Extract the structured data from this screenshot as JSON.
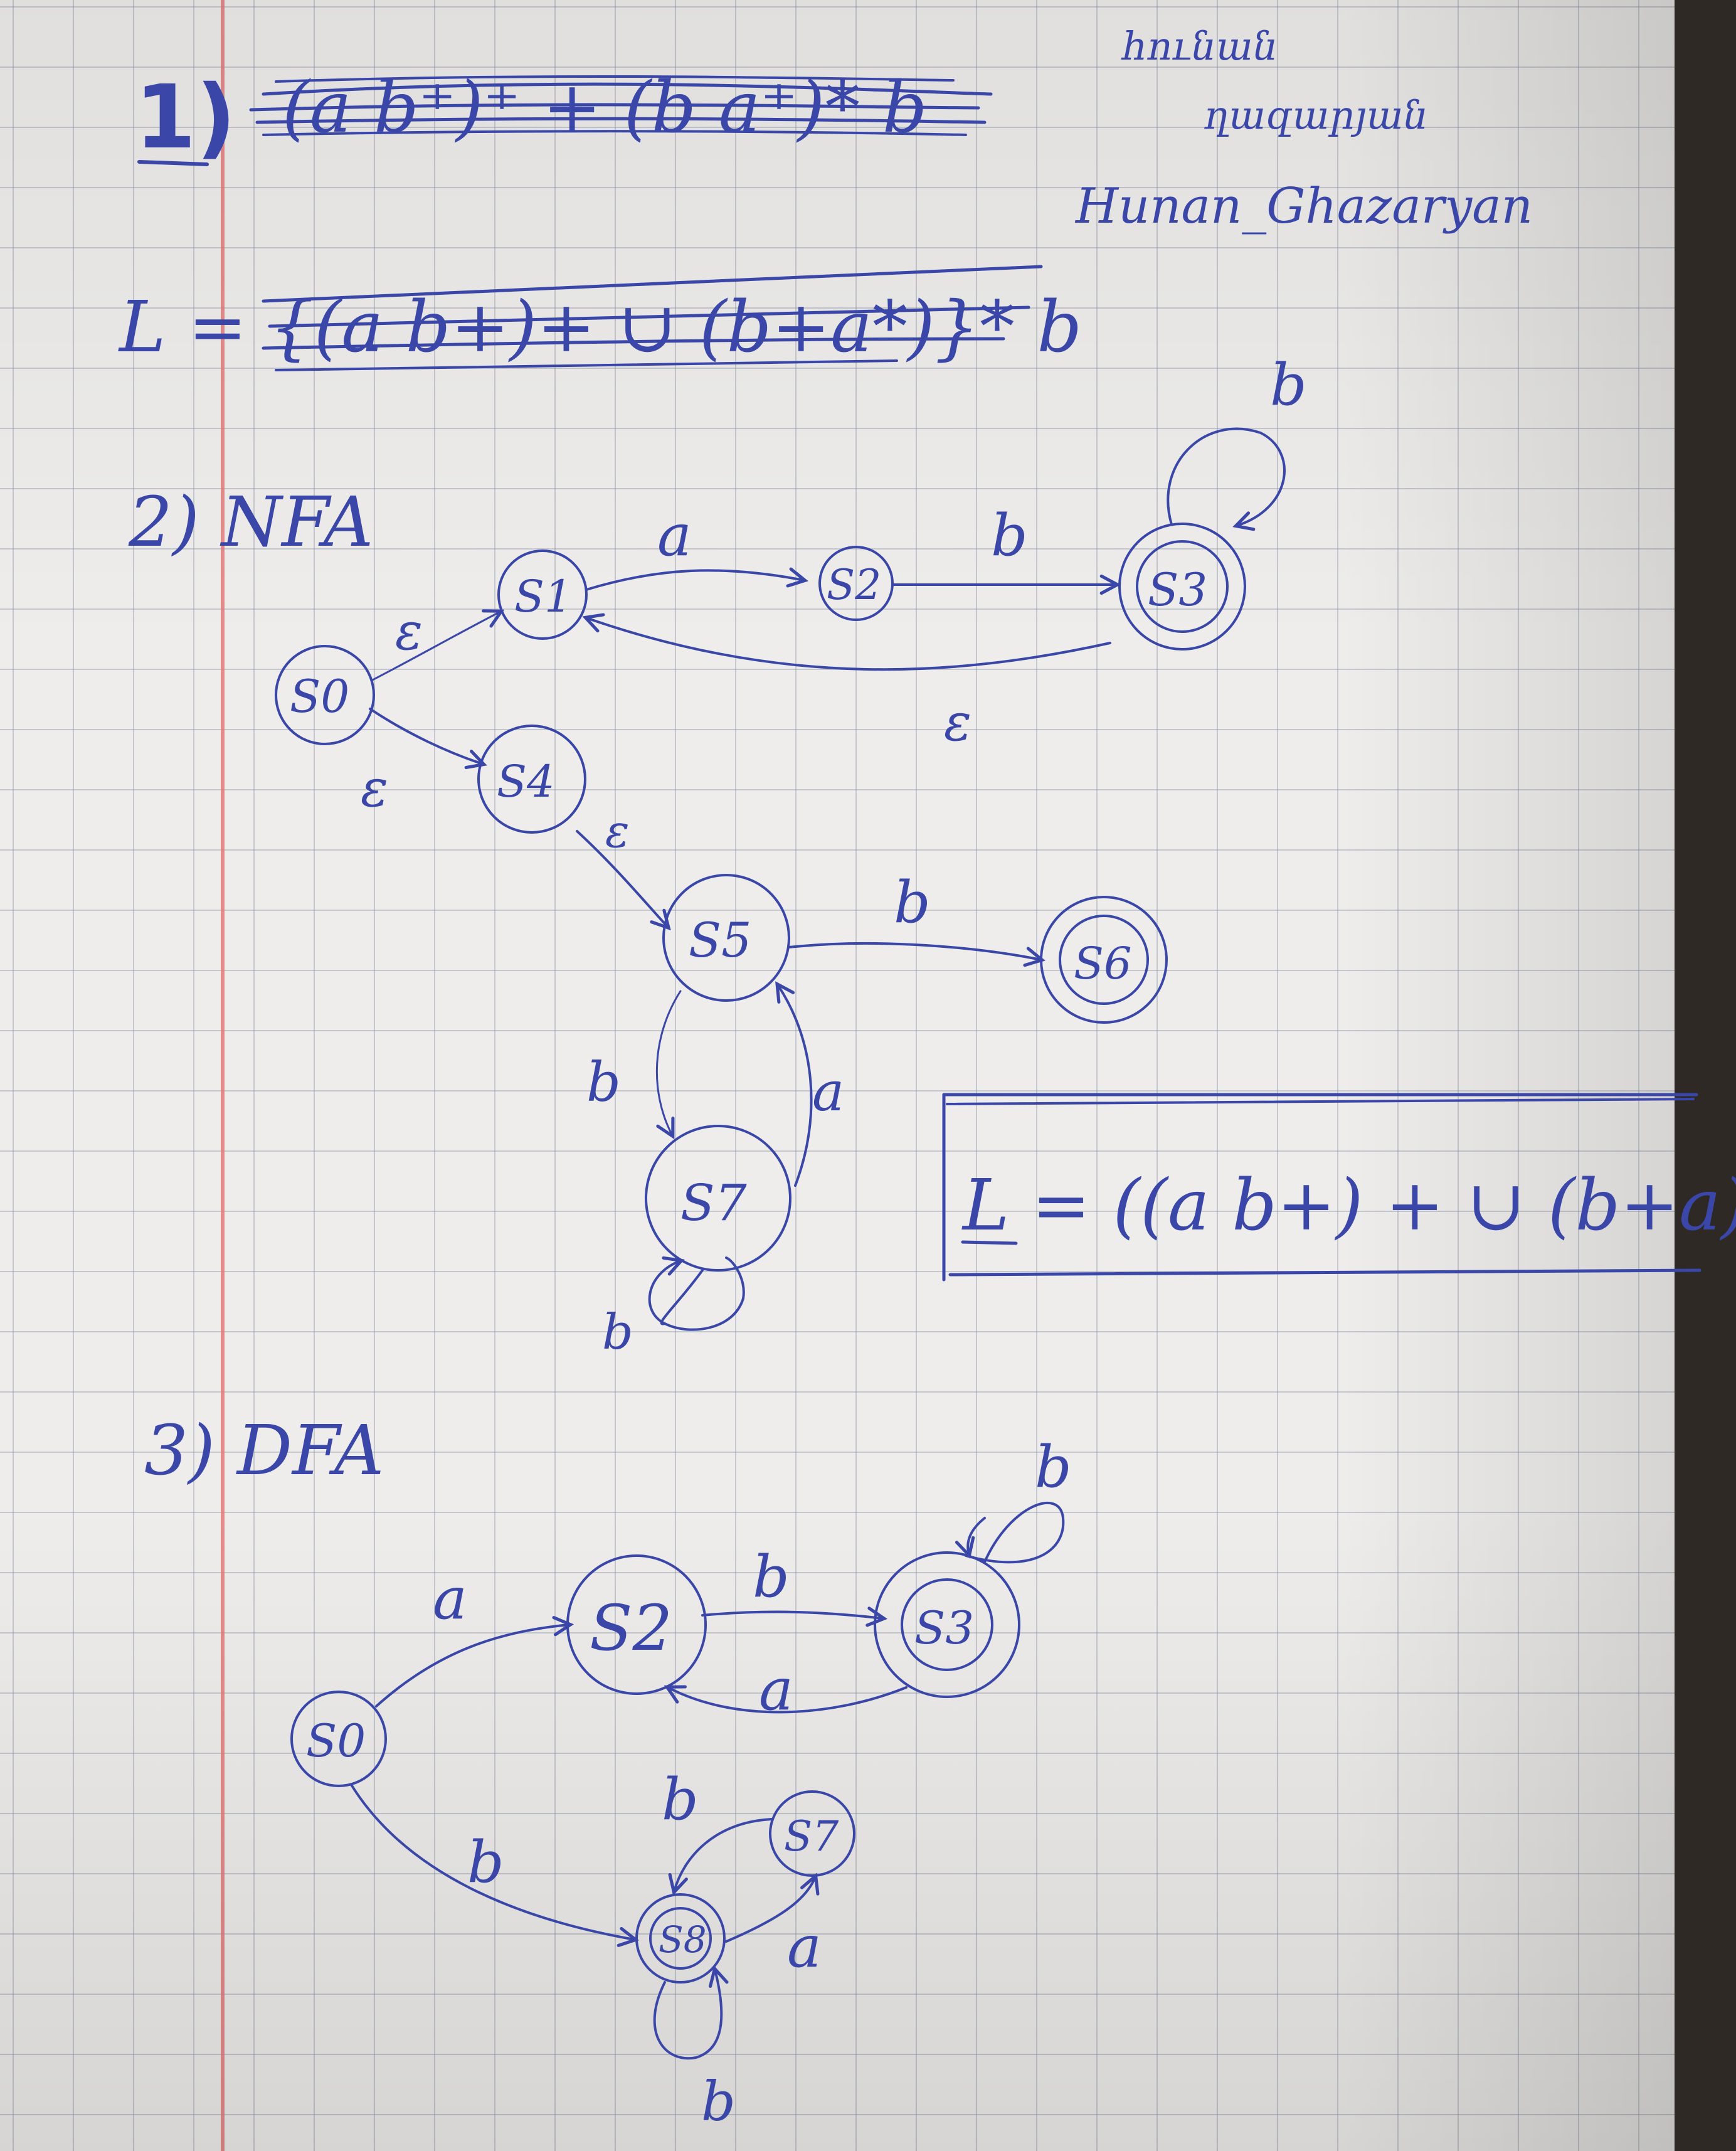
{
  "header": {
    "section1_number": "1)",
    "author_armenian_line1": "հունան",
    "author_armenian_line2": "ղազարյան",
    "author_latin": "Hunan_Ghazaryan"
  },
  "section1": {
    "crossed_expression": "(a b⁺)⁺ + (b a⁺)* b",
    "crossed_language": "L = {(a b+)+ ∪ (b+a*)}* b"
  },
  "section2": {
    "heading": "2) NFA",
    "states": [
      "S1",
      "S2",
      "S3",
      "S0",
      "S4",
      "S5",
      "S6",
      "S7"
    ],
    "transition_labels": {
      "s1_s2": "a",
      "s2_s3": "b",
      "s3_loop": "b",
      "s3_s1": "ε",
      "s0_s1": "ε",
      "s0_s4": "ε",
      "s4_s5": "ε",
      "s5_s6": "b",
      "s5_s7": "b",
      "s7_s5": "a",
      "s7_loop": "b"
    }
  },
  "boxed_answer": "L = ((a b+) + ∪ (b+a)*) b",
  "section3": {
    "heading": "3) DFA",
    "states": [
      "S0",
      "S2",
      "S3",
      "S8",
      "S7"
    ],
    "transition_labels": {
      "s0_s2": "a",
      "s2_s3": "b",
      "s3_s2": "a",
      "s3_loop": "b",
      "s0_s8": "b",
      "s8_s7": "a",
      "s7_s8": "b",
      "s8_loop": "b"
    }
  },
  "colors": {
    "ink": "#3b47a8",
    "paper": "#eeedeb",
    "grid": "#8c93ab",
    "margin": "#e07a7a"
  }
}
